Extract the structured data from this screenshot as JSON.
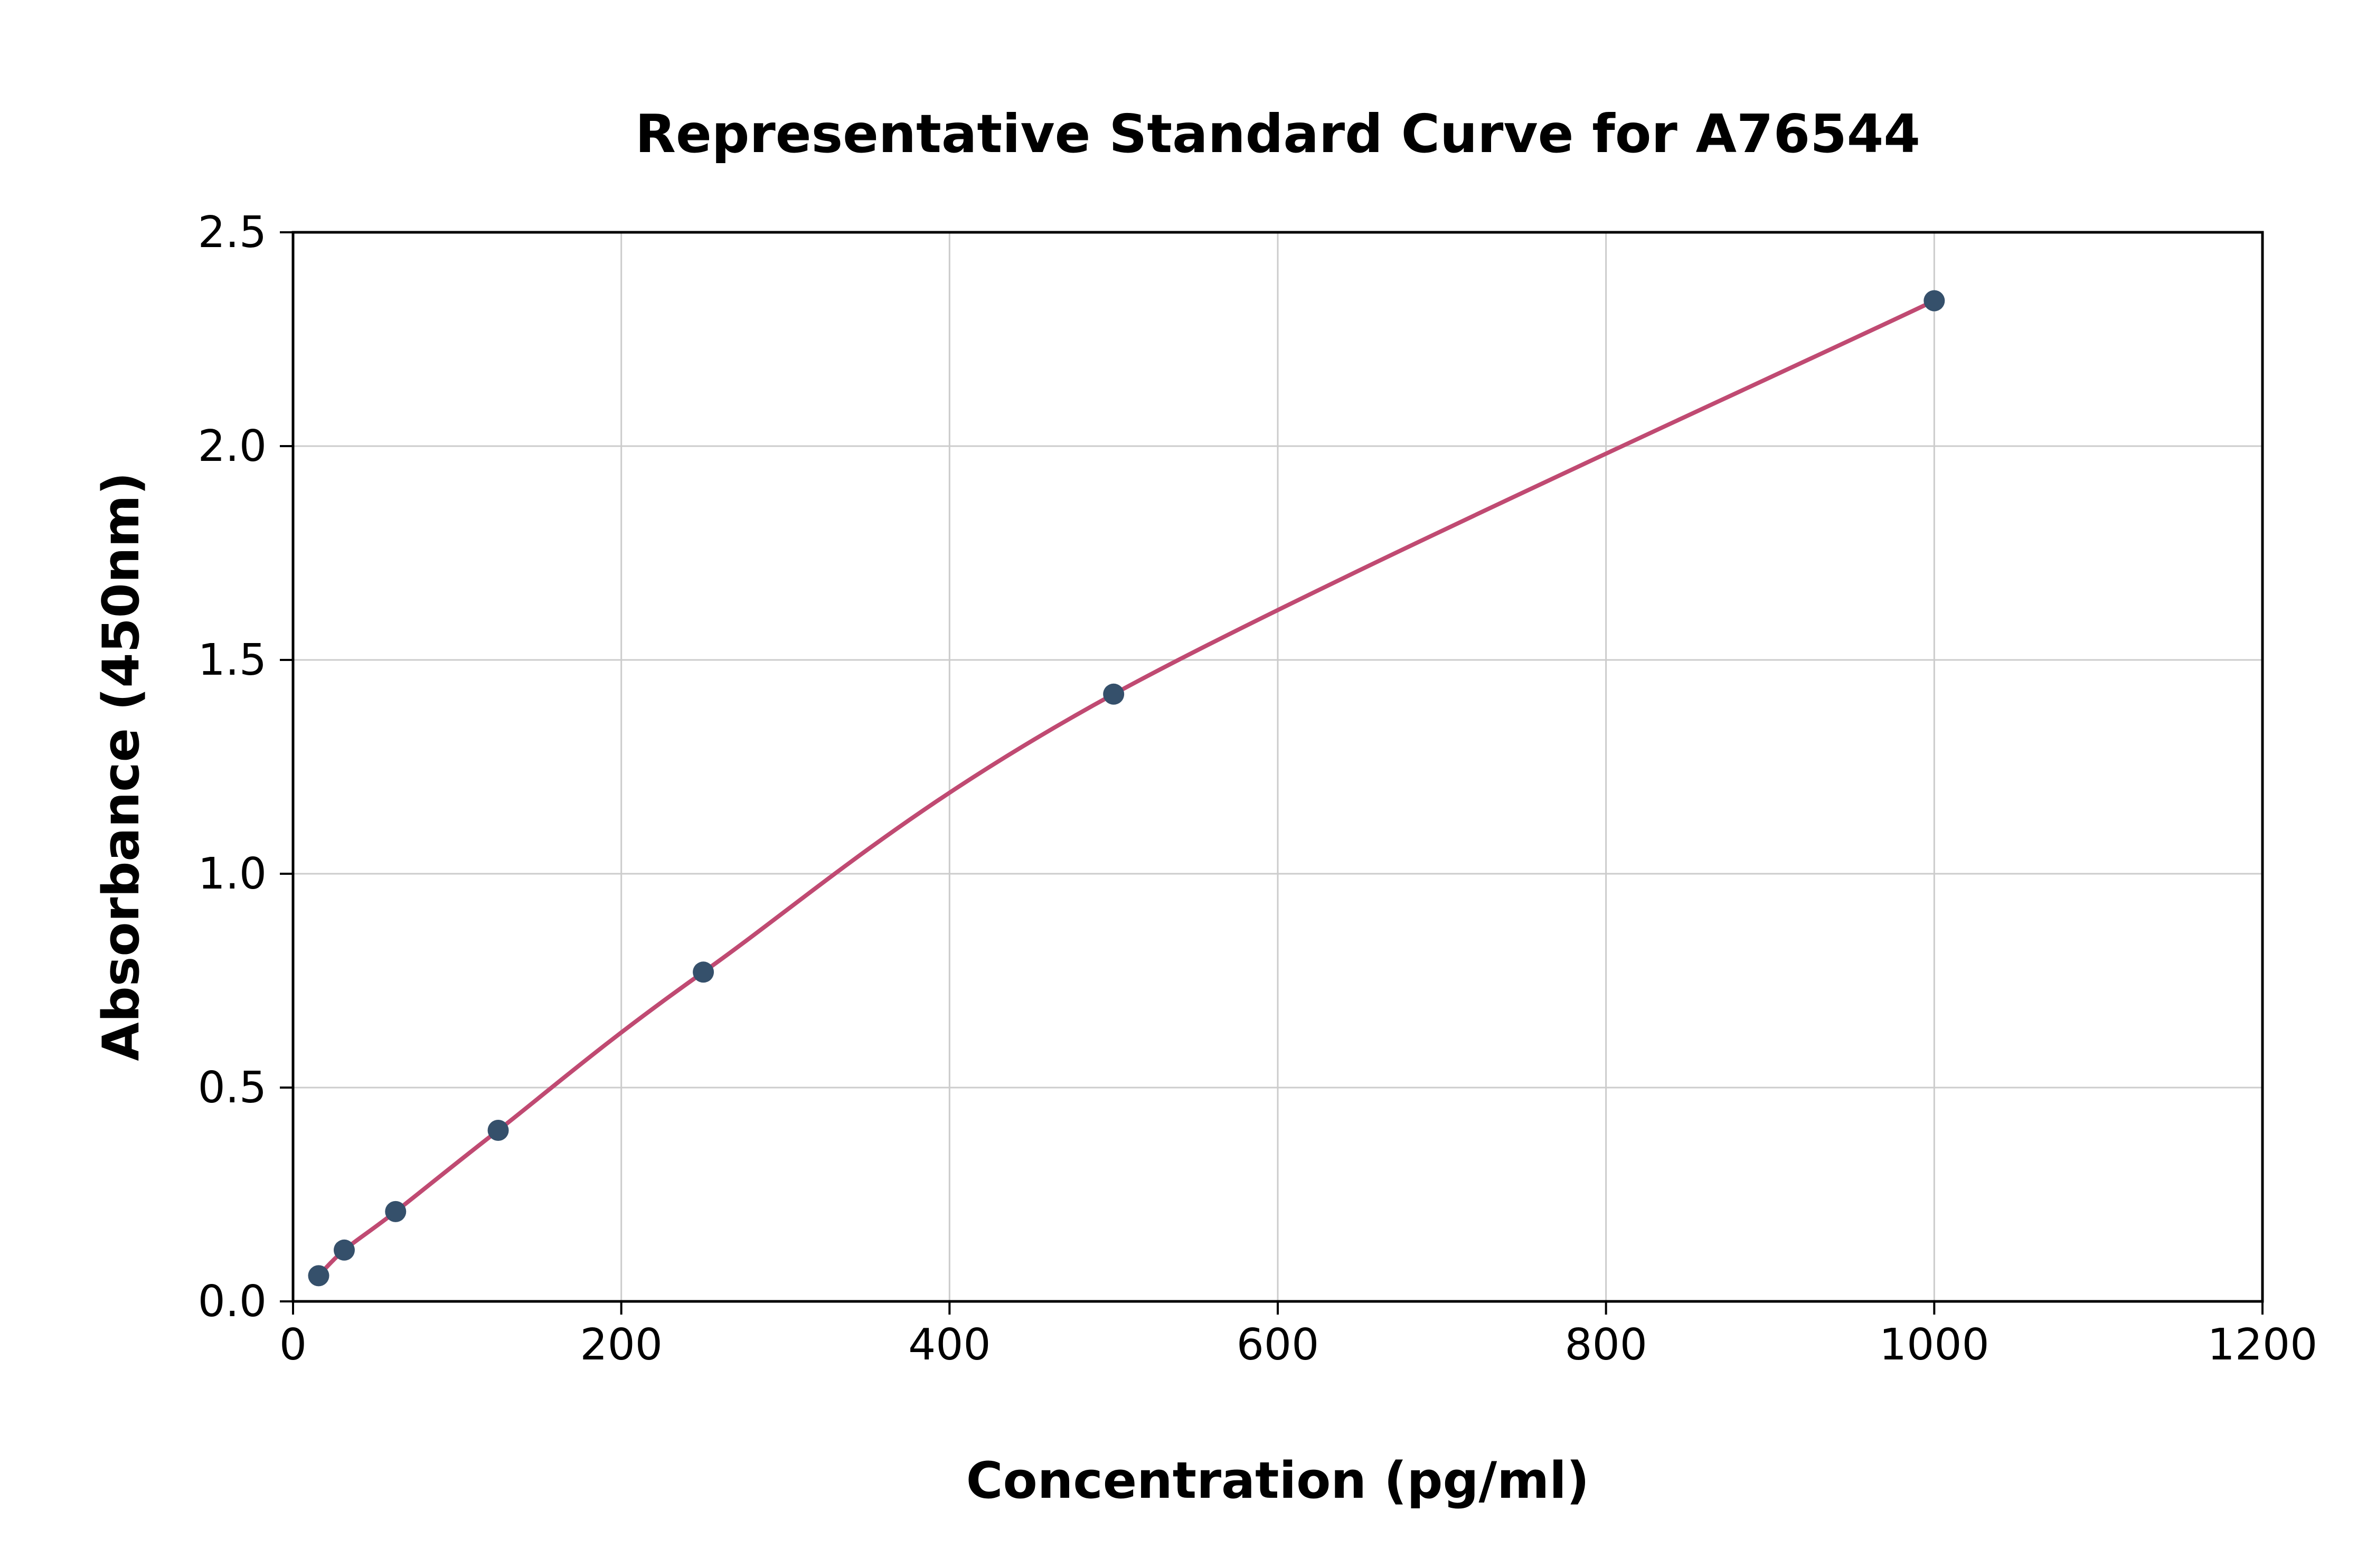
{
  "chart_data": {
    "type": "line",
    "title": "Representative Standard Curve for A76544",
    "xlabel": "Concentration (pg/ml)",
    "ylabel": "Absorbance (450nm)",
    "xlim": [
      0,
      1200
    ],
    "ylim": [
      0,
      2.5
    ],
    "xticks": [
      0,
      200,
      400,
      600,
      800,
      1000,
      1200
    ],
    "xtick_labels": [
      "0",
      "200",
      "400",
      "600",
      "800",
      "1000",
      "1200"
    ],
    "yticks": [
      0.0,
      0.5,
      1.0,
      1.5,
      2.0,
      2.5
    ],
    "ytick_labels": [
      "0.0",
      "0.5",
      "1.0",
      "1.5",
      "2.0",
      "2.5"
    ],
    "grid": true,
    "legend_position": "none",
    "series": [
      {
        "name": "Standard Curve",
        "x": [
          15.6,
          31.2,
          62.5,
          125,
          250,
          500,
          1000
        ],
        "y": [
          0.06,
          0.12,
          0.21,
          0.4,
          0.77,
          1.42,
          2.34
        ]
      }
    ],
    "colors": {
      "line": "#c04a72",
      "marker": "#35506b",
      "grid": "#cccccc",
      "axis_border": "#000000",
      "background": "#ffffff"
    }
  }
}
